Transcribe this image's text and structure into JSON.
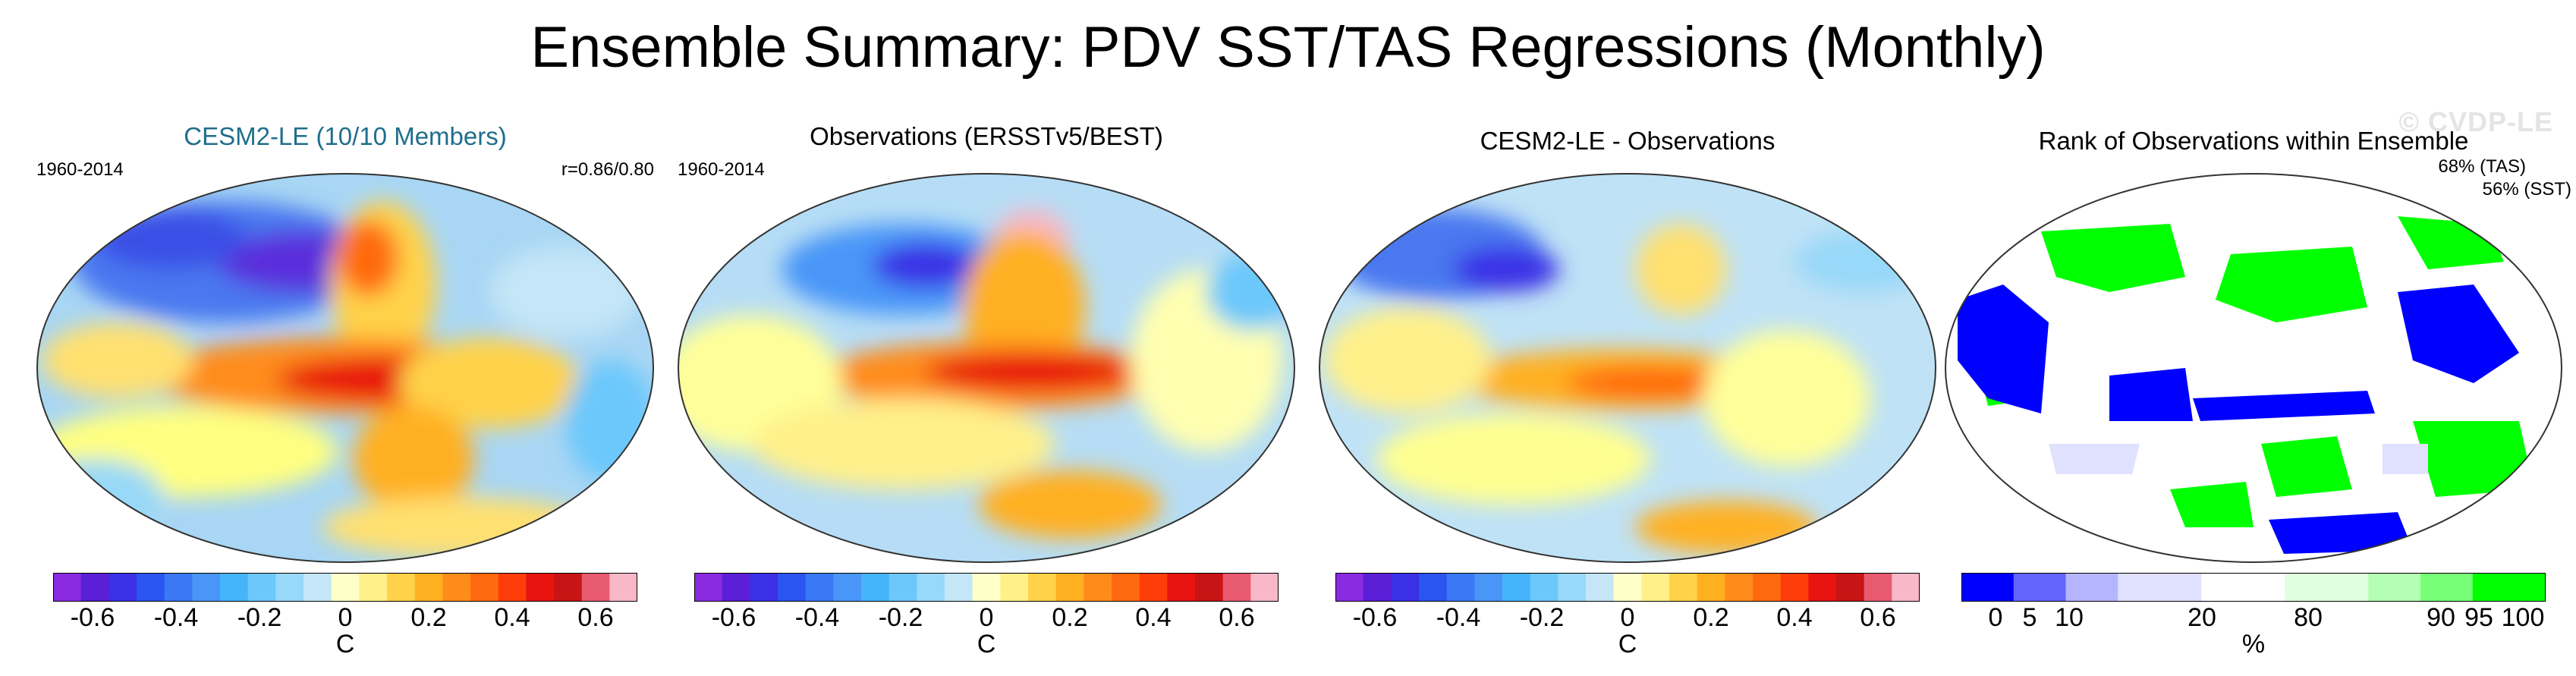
{
  "title": "Ensemble Summary: PDV SST/TAS Regressions (Monthly)",
  "watermark": "© CVDP-LE",
  "panels": [
    {
      "title": "CESM2-LE (10/10 Members)",
      "period": "1960-2014",
      "stat": "r=0.86/0.80"
    },
    {
      "title": "Observations (ERSSTv5/BEST)",
      "period": "1960-2014"
    },
    {
      "title": "CESM2-LE - Observations"
    },
    {
      "title": "Rank of Observations within Ensemble",
      "stat1": "68% (TAS)",
      "stat2": "56% (SST)"
    }
  ],
  "colorbar_c": {
    "unit": "C",
    "labels": [
      "-0.6",
      "-0.4",
      "-0.2",
      "0",
      "0.2",
      "0.4",
      "0.6"
    ],
    "colors": [
      "#8a2be2",
      "#5a1fd6",
      "#3b30e6",
      "#2a55f0",
      "#3a78f5",
      "#4a96f8",
      "#46b4fa",
      "#6cc8fb",
      "#98d8f8",
      "#c4e6f7",
      "#ffffc8",
      "#fff08a",
      "#ffd24a",
      "#ffb020",
      "#ff8c1a",
      "#ff6a10",
      "#ff3d0a",
      "#e81410",
      "#c81414",
      "#e85a70",
      "#f8b8c8"
    ]
  },
  "colorbar_rank": {
    "unit": "%",
    "labels": [
      "0",
      "5",
      "10",
      "20",
      "80",
      "90",
      "95",
      "100"
    ],
    "colors": [
      "#0000ff",
      "#6464ff",
      "#b4b4ff",
      "#e0e0ff",
      "#ffffff",
      "#e0ffe0",
      "#b4ffb4",
      "#78ff78",
      "#00ff00"
    ]
  }
}
